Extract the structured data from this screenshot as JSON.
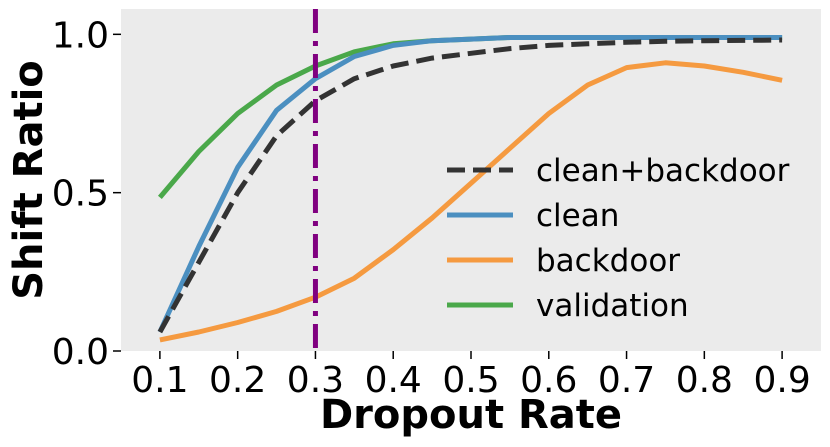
{
  "chart_data": {
    "type": "line",
    "xlabel": "Dropout Rate",
    "ylabel": "Shift Ratio",
    "xlim": [
      0.05,
      0.95
    ],
    "ylim": [
      0.0,
      1.08
    ],
    "xticks": [
      "0.1",
      "0.2",
      "0.3",
      "0.4",
      "0.5",
      "0.6",
      "0.7",
      "0.8",
      "0.9"
    ],
    "yticks": [
      "0.0",
      "0.5",
      "1.0"
    ],
    "grid": false,
    "background": "#ebebeb",
    "legend_position": "center-right",
    "vertical_line": {
      "x": 0.3,
      "style": "dash-dot",
      "color": "#800080"
    },
    "x": [
      0.1,
      0.15,
      0.2,
      0.25,
      0.3,
      0.35,
      0.4,
      0.45,
      0.5,
      0.55,
      0.6,
      0.65,
      0.7,
      0.75,
      0.8,
      0.85,
      0.9
    ],
    "series": [
      {
        "name": "clean+backdoor",
        "color": "#333333",
        "style": "dashed",
        "values": [
          0.06,
          0.28,
          0.5,
          0.68,
          0.79,
          0.86,
          0.9,
          0.925,
          0.94,
          0.955,
          0.965,
          0.97,
          0.975,
          0.978,
          0.98,
          0.981,
          0.982
        ]
      },
      {
        "name": "clean",
        "color": "#4b8fc0",
        "style": "solid",
        "values": [
          0.06,
          0.33,
          0.58,
          0.76,
          0.86,
          0.93,
          0.965,
          0.98,
          0.985,
          0.99,
          0.99,
          0.99,
          0.99,
          0.99,
          0.99,
          0.99,
          0.99
        ]
      },
      {
        "name": "backdoor",
        "color": "#f59a40",
        "style": "solid",
        "values": [
          0.035,
          0.06,
          0.09,
          0.125,
          0.17,
          0.23,
          0.32,
          0.42,
          0.53,
          0.64,
          0.75,
          0.84,
          0.895,
          0.91,
          0.9,
          0.88,
          0.855
        ]
      },
      {
        "name": "validation",
        "color": "#4aa84a",
        "style": "solid",
        "values": [
          0.485,
          0.63,
          0.75,
          0.84,
          0.9,
          0.945,
          0.97,
          0.98,
          0.985,
          0.99,
          0.99,
          0.99,
          0.99,
          0.99,
          0.99,
          0.99,
          0.99
        ]
      }
    ]
  }
}
